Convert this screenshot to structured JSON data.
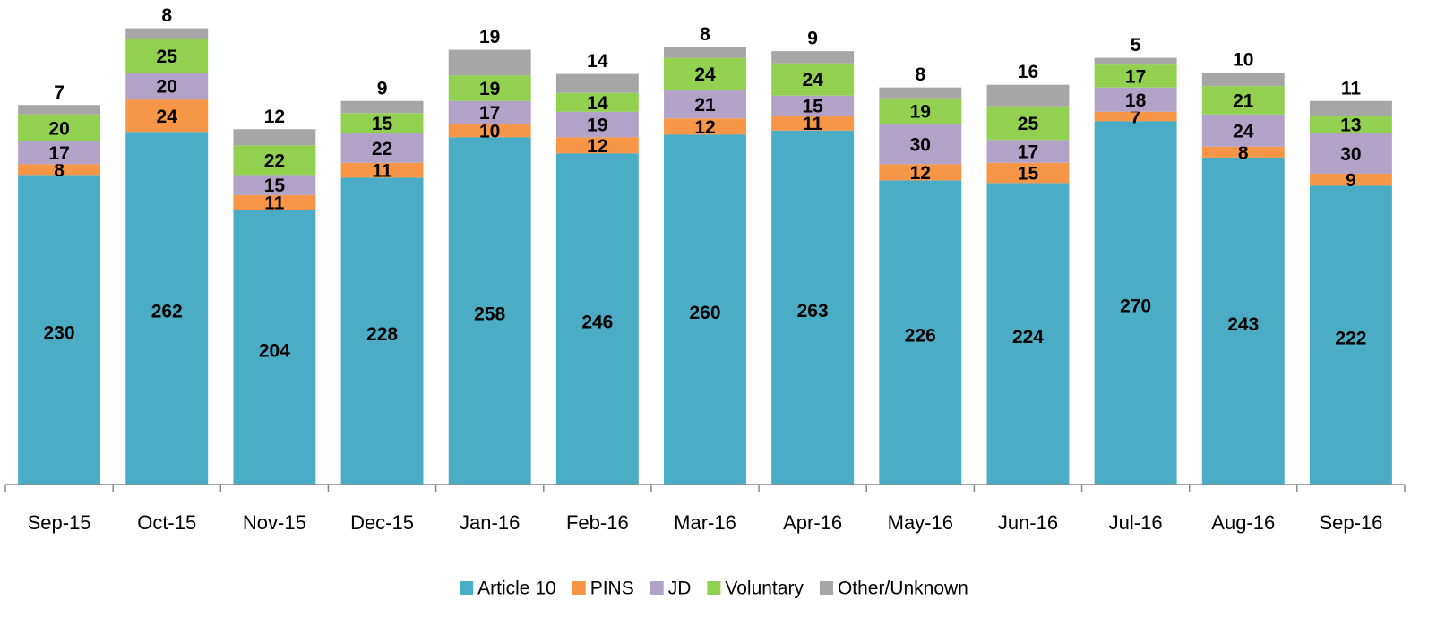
{
  "chart_data": {
    "type": "stacked_bar",
    "categories": [
      "Sep-15",
      "Oct-15",
      "Nov-15",
      "Dec-15",
      "Jan-16",
      "Feb-16",
      "Mar-16",
      "Apr-16",
      "May-16",
      "Jun-16",
      "Jul-16",
      "Aug-16",
      "Sep-16"
    ],
    "series": [
      {
        "name": "Article 10",
        "color": "#4bacc6",
        "values": [
          230,
          262,
          204,
          228,
          258,
          246,
          260,
          263,
          226,
          224,
          270,
          243,
          222
        ]
      },
      {
        "name": "PINS",
        "color": "#f79646",
        "values": [
          8,
          24,
          11,
          11,
          10,
          12,
          12,
          11,
          12,
          15,
          7,
          8,
          9
        ]
      },
      {
        "name": "JD",
        "color": "#b3a2c7",
        "values": [
          17,
          20,
          15,
          22,
          17,
          19,
          21,
          15,
          30,
          17,
          18,
          24,
          30
        ]
      },
      {
        "name": "Voluntary",
        "color": "#92d050",
        "values": [
          20,
          25,
          22,
          15,
          19,
          14,
          24,
          24,
          19,
          25,
          17,
          21,
          13
        ]
      },
      {
        "name": "Other/Unknown",
        "color": "#a6a6a6",
        "values": [
          7,
          8,
          12,
          9,
          19,
          14,
          8,
          9,
          8,
          16,
          5,
          10,
          11
        ]
      }
    ],
    "ylim": [
      0,
      360
    ],
    "legend": "bottom"
  }
}
